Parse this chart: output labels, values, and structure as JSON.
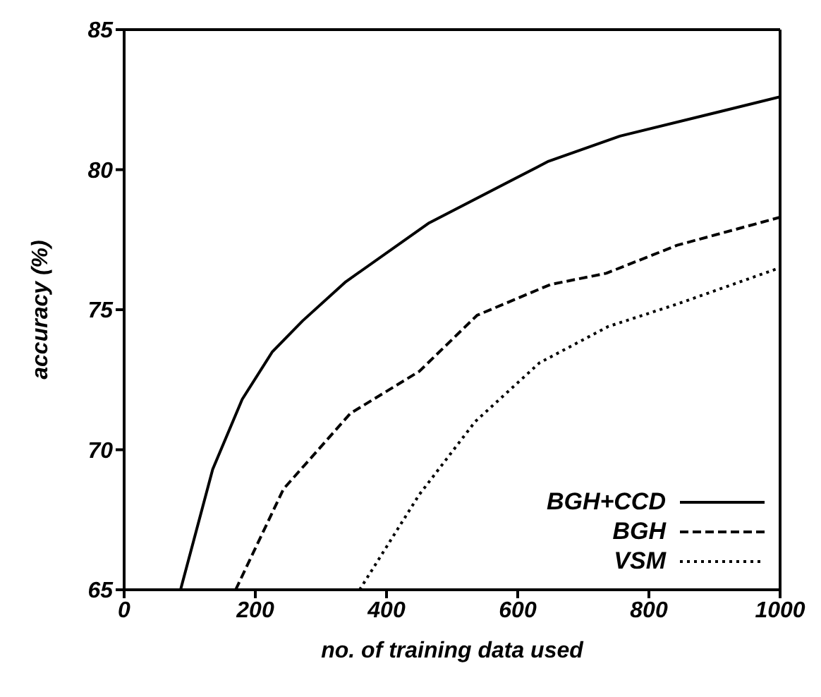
{
  "chart_data": {
    "type": "line",
    "xlabel": "no. of training data used",
    "ylabel": "accuracy (%)",
    "xlim": [
      0,
      1000
    ],
    "xticks": [
      0,
      200,
      400,
      600,
      800,
      1000
    ],
    "ylim": [
      65,
      85
    ],
    "yticks": [
      65,
      70,
      75,
      80,
      85
    ],
    "grid": false,
    "legend": "bottom right",
    "marker": "none",
    "series": [
      {
        "name": "BGH+CCD",
        "color": "#000000",
        "line_style": "solid",
        "x": [
          86,
          135,
          180,
          226,
          272,
          338,
          465,
          647,
          756,
          1000
        ],
        "values": [
          65,
          69.3,
          71.8,
          73.5,
          74.6,
          76.0,
          78.1,
          80.3,
          81.2,
          82.6
        ]
      },
      {
        "name": "BGH",
        "color": "#000000",
        "line_style": "dashed",
        "x": [
          170,
          243,
          345,
          450,
          538,
          650,
          735,
          843,
          1000
        ],
        "values": [
          65,
          68.6,
          71.3,
          72.8,
          74.8,
          75.9,
          76.3,
          77.3,
          78.3
        ]
      },
      {
        "name": "VSM",
        "color": "#000000",
        "line_style": "dotted",
        "x": [
          359,
          450,
          535,
          633,
          738,
          843,
          1000
        ],
        "values": [
          65,
          68.4,
          71.0,
          73.1,
          74.4,
          75.2,
          76.5
        ]
      }
    ]
  }
}
